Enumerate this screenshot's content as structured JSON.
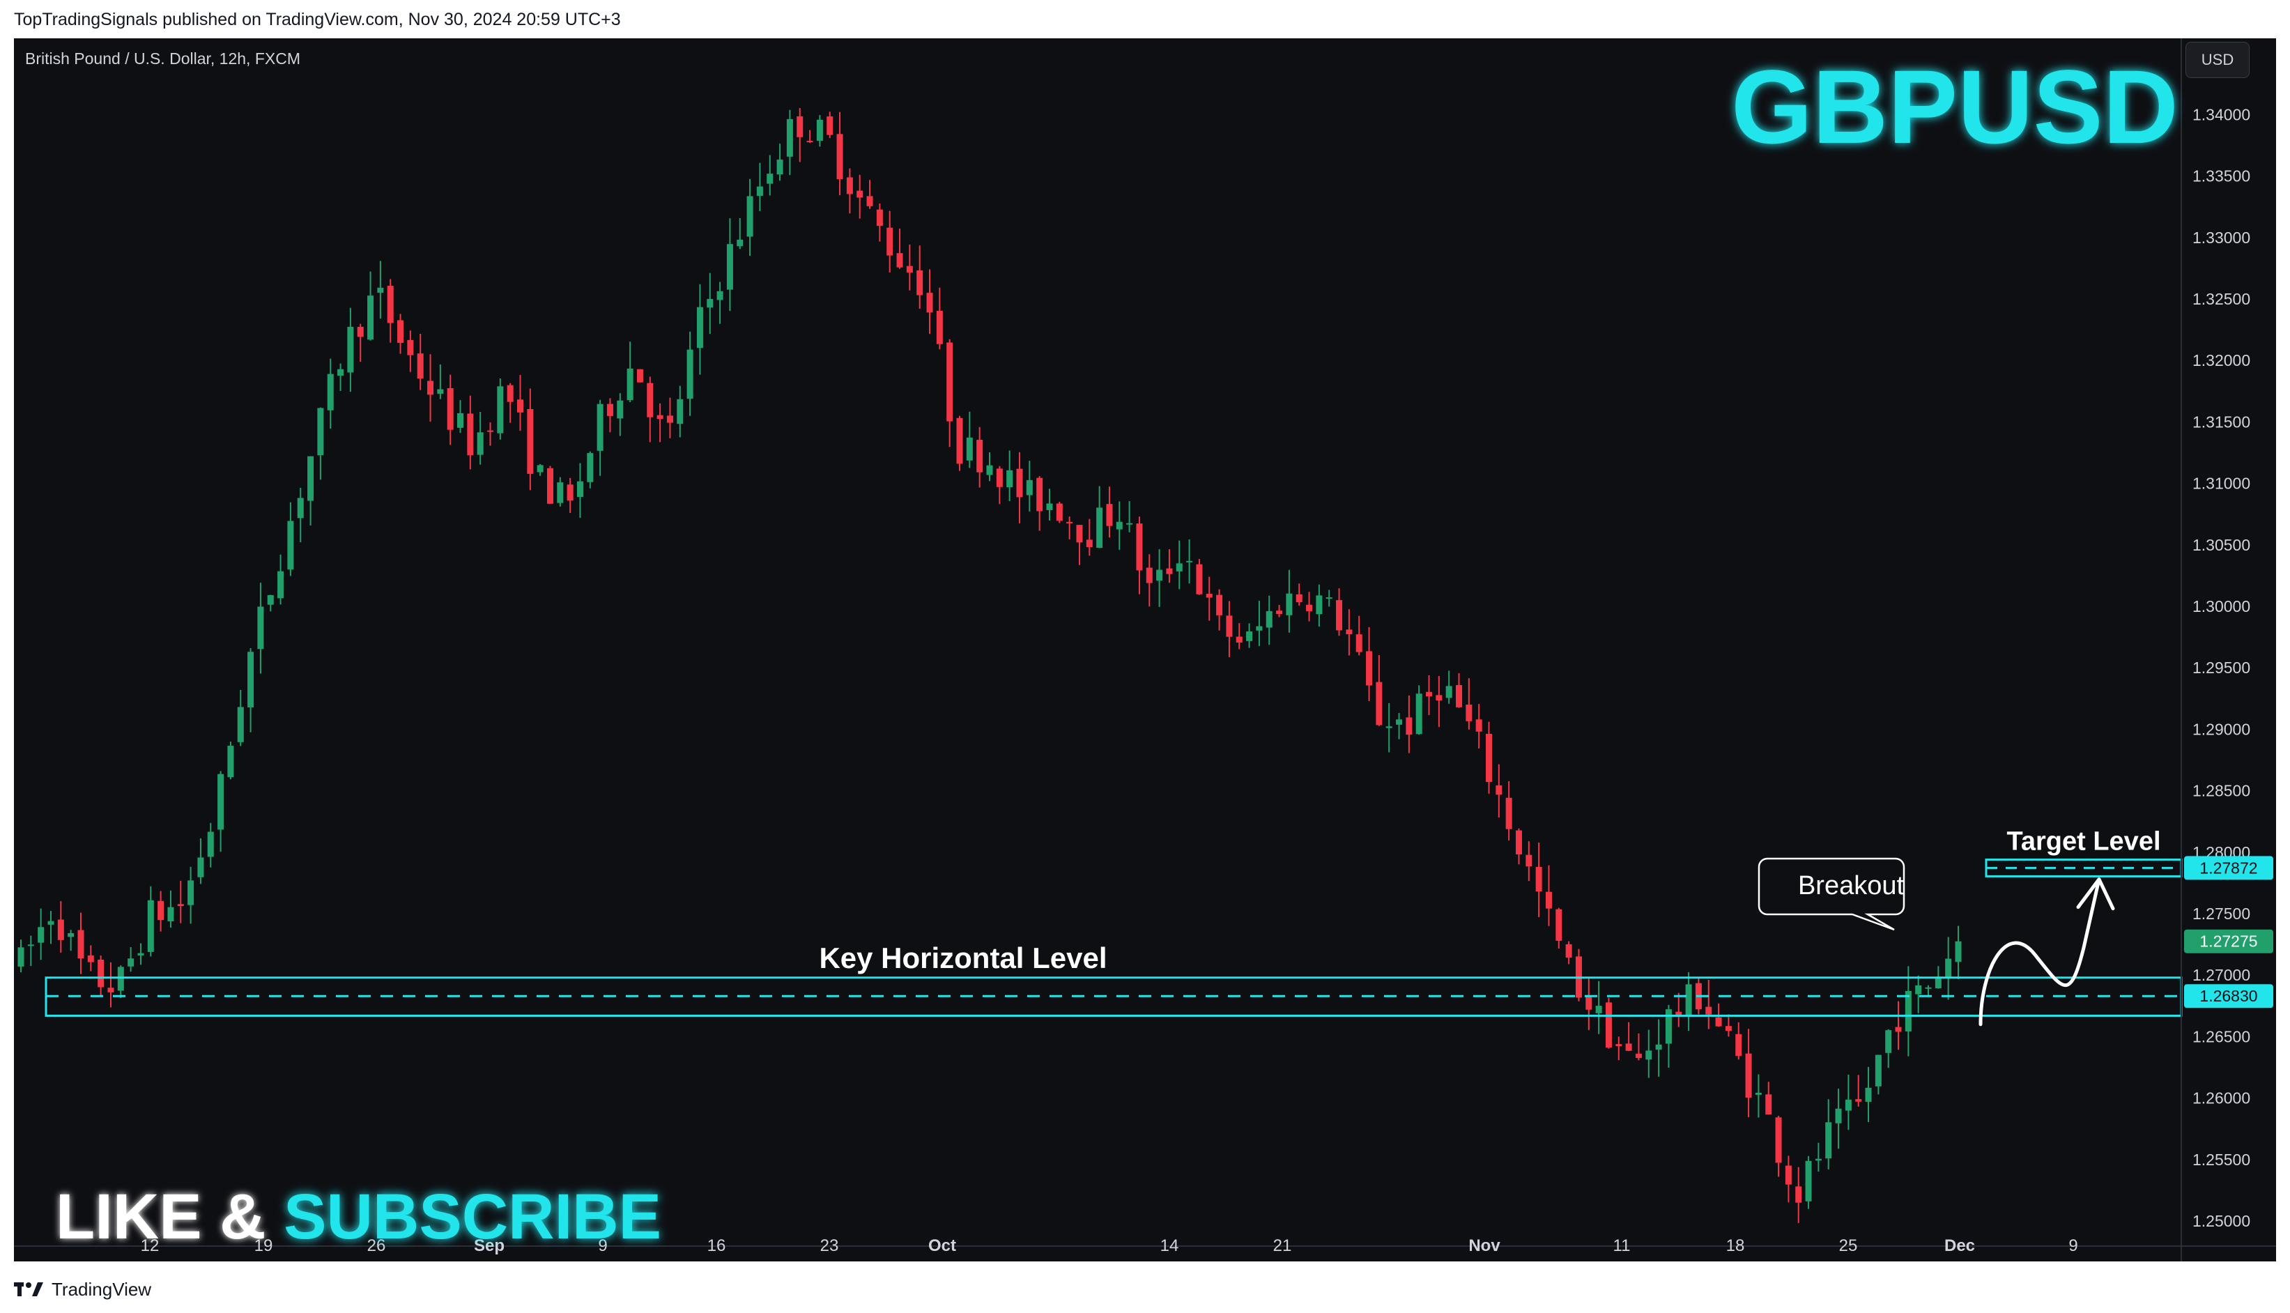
{
  "header": {
    "publish_line": "TopTradingSignals published on TradingView.com, Nov 30, 2024 20:59 UTC+3"
  },
  "footer": {
    "brand": "TradingView",
    "logo_icon": "tradingview-logo-icon"
  },
  "toolbar": {
    "currency_button": "USD"
  },
  "colors": {
    "background": "#0e0f13",
    "up": "#22a06b",
    "down": "#f23645",
    "accent": "#22e5ec",
    "axis_text": "#d1d4dc"
  },
  "chart_data": {
    "type": "candlestick",
    "symbol_line": "British Pound / U.S. Dollar, 12h, FXCM",
    "title": "GBPUSD",
    "cta": {
      "part1": "LIKE & ",
      "part2": "SUBSCRIBE"
    },
    "x_ticks": [
      "12",
      "19",
      "26",
      "Sep",
      "9",
      "16",
      "23",
      "Oct",
      "14",
      "21",
      "Nov",
      "11",
      "18",
      "25",
      "Dec",
      "9"
    ],
    "x_tick_bold": [
      "Sep",
      "Oct",
      "Nov",
      "Dec"
    ],
    "y_ticks": [
      "1.34000",
      "1.33500",
      "1.33000",
      "1.32500",
      "1.32000",
      "1.31500",
      "1.31000",
      "1.30500",
      "1.30000",
      "1.29500",
      "1.29000",
      "1.28500",
      "1.28000",
      "1.27500",
      "1.27000",
      "1.26500",
      "1.26000",
      "1.25500",
      "1.25000"
    ],
    "ylim": [
      1.2487,
      1.3445
    ],
    "price_labels": {
      "target": "1.27872",
      "last": "1.27275",
      "key": "1.26830"
    },
    "annotations": {
      "key_level_label": "Key Horizontal Level",
      "key_level_value": 1.2683,
      "key_zone": [
        1.2667,
        1.2698
      ],
      "target_label": "Target Level",
      "target_value": 1.27872,
      "breakout_label": "Breakout"
    },
    "close_path": [
      1.271,
      1.2755,
      1.27,
      1.269,
      1.2748,
      1.2758,
      1.283,
      1.295,
      1.304,
      1.3125,
      1.321,
      1.3255,
      1.3205,
      1.3165,
      1.313,
      1.318,
      1.3105,
      1.308,
      1.3155,
      1.32,
      1.313,
      1.323,
      1.329,
      1.335,
      1.3395,
      1.338,
      1.333,
      1.329,
      1.326,
      1.313,
      1.312,
      1.309,
      1.3085,
      1.306,
      1.308,
      1.301,
      1.305,
      1.2985,
      1.297,
      1.3005,
      1.301,
      1.2985,
      1.291,
      1.2905,
      1.294,
      1.2895,
      1.283,
      1.2765,
      1.27,
      1.266,
      1.2625,
      1.2665,
      1.2685,
      1.264,
      1.259,
      1.252,
      1.257,
      1.2595,
      1.2665,
      1.269,
      1.27275
    ],
    "grid": false,
    "legend": "none"
  }
}
